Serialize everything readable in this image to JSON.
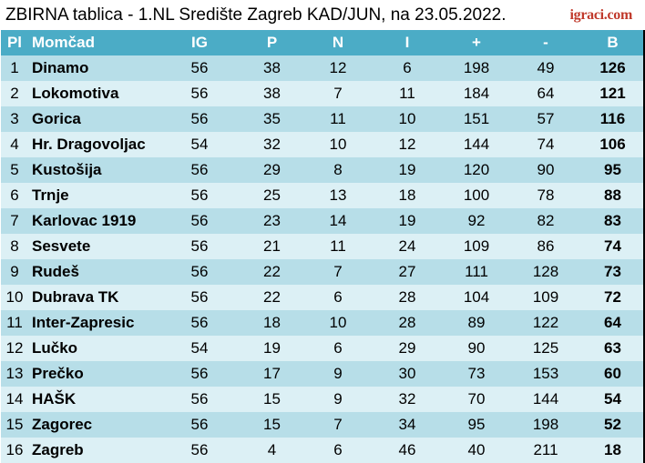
{
  "title": "ZBIRNA tablica - 1.NL Središte Zagreb KAD/JUN, na 23.05.2022.",
  "logo": "igraci.com",
  "headers": [
    "Pl",
    "Momčad",
    "IG",
    "P",
    "N",
    "I",
    "+",
    "-",
    "B"
  ],
  "colors": {
    "header_bg": "#4bacc6",
    "row_odd": "#b7dee8",
    "row_even": "#dcf0f5",
    "logo": "#c0392b"
  },
  "rows": [
    [
      "1",
      "Dinamo",
      "56",
      "38",
      "12",
      "6",
      "198",
      "49",
      "126"
    ],
    [
      "2",
      "Lokomotiva",
      "56",
      "38",
      "7",
      "11",
      "184",
      "64",
      "121"
    ],
    [
      "3",
      "Gorica",
      "56",
      "35",
      "11",
      "10",
      "151",
      "57",
      "116"
    ],
    [
      "4",
      "Hr. Dragovoljac",
      "54",
      "32",
      "10",
      "12",
      "144",
      "74",
      "106"
    ],
    [
      "5",
      "Kustošija",
      "56",
      "29",
      "8",
      "19",
      "120",
      "90",
      "95"
    ],
    [
      "6",
      "Trnje",
      "56",
      "25",
      "13",
      "18",
      "100",
      "78",
      "88"
    ],
    [
      "7",
      "Karlovac 1919",
      "56",
      "23",
      "14",
      "19",
      "92",
      "82",
      "83"
    ],
    [
      "8",
      "Sesvete",
      "56",
      "21",
      "11",
      "24",
      "109",
      "86",
      "74"
    ],
    [
      "9",
      "Rudeš",
      "56",
      "22",
      "7",
      "27",
      "111",
      "128",
      "73"
    ],
    [
      "10",
      "Dubrava TK",
      "56",
      "22",
      "6",
      "28",
      "104",
      "109",
      "72"
    ],
    [
      "11",
      "Inter-Zapresic",
      "56",
      "18",
      "10",
      "28",
      "89",
      "122",
      "64"
    ],
    [
      "12",
      "Lučko",
      "54",
      "19",
      "6",
      "29",
      "90",
      "125",
      "63"
    ],
    [
      "13",
      "Prečko",
      "56",
      "17",
      "9",
      "30",
      "73",
      "153",
      "60"
    ],
    [
      "14",
      "HAŠK",
      "56",
      "15",
      "9",
      "32",
      "70",
      "144",
      "54"
    ],
    [
      "15",
      "Zagorec",
      "56",
      "15",
      "7",
      "34",
      "95",
      "198",
      "52"
    ],
    [
      "16",
      "Zagreb",
      "56",
      "4",
      "6",
      "46",
      "40",
      "211",
      "18"
    ]
  ]
}
